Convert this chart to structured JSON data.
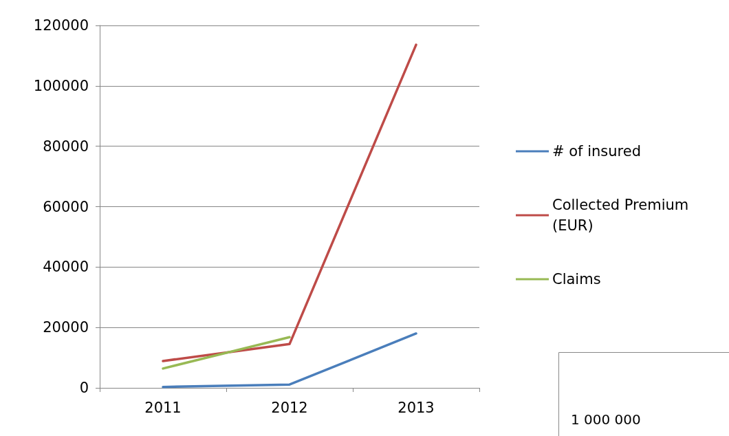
{
  "chart_data": {
    "type": "line",
    "categories": [
      "2011",
      "2012",
      "2013"
    ],
    "series": [
      {
        "name": "# of insured",
        "color": "#4a7ebb",
        "values": [
          300,
          1100,
          18000
        ]
      },
      {
        "name": "Collected Premium (EUR)",
        "color": "#be4b48",
        "values": [
          8900,
          14500,
          113600
        ]
      },
      {
        "name": "Claims",
        "color": "#98b954",
        "values": [
          6400,
          16800,
          null
        ]
      }
    ],
    "ylim": [
      0,
      120000
    ],
    "yticks": [
      0,
      20000,
      40000,
      60000,
      80000,
      100000,
      120000
    ],
    "grid": "y",
    "legend": "right",
    "marker": "none",
    "annotations": [
      "1 000 000"
    ]
  }
}
